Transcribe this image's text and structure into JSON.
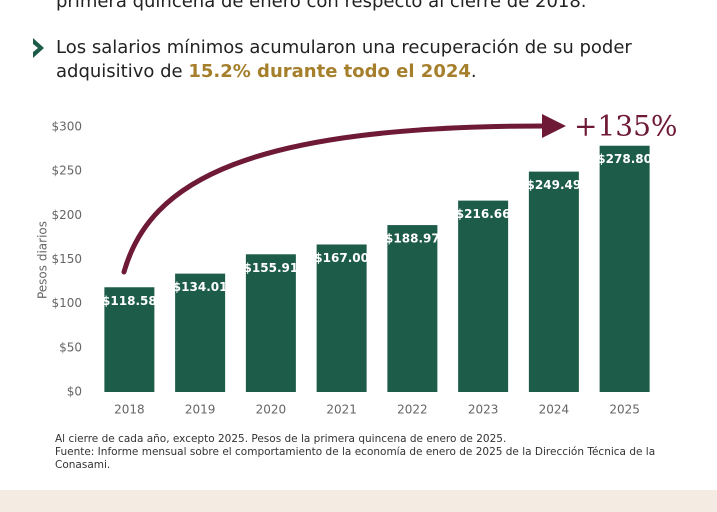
{
  "header_text": "primera quincena de enero con respecto al cierre de 2018.",
  "bullet": {
    "line1": "Los salarios mínimos acumularon una recuperación de su poder",
    "before": "adquisitivo de ",
    "highlight": "15.2% durante todo el 2024",
    "after": "."
  },
  "chart_data": {
    "type": "bar",
    "categories": [
      "2018",
      "2019",
      "2020",
      "2021",
      "2022",
      "2023",
      "2024",
      "2025"
    ],
    "values": [
      118.58,
      134.01,
      155.91,
      167.0,
      188.97,
      216.66,
      249.49,
      278.8
    ],
    "value_labels": [
      "$118.58",
      "$134.01",
      "$155.91",
      "$167.00",
      "$188.97",
      "$216.66",
      "$249.49",
      "$278.80"
    ],
    "color": "#1e5c4a",
    "y_label": "Pesos diarios",
    "ylim": [
      0,
      300
    ],
    "yticks": [
      {
        "value": 0,
        "label": "$0"
      },
      {
        "value": 50,
        "label": "$50"
      },
      {
        "value": 100,
        "label": "$100"
      },
      {
        "value": 150,
        "label": "$150"
      },
      {
        "value": 200,
        "label": "$200"
      },
      {
        "value": 250,
        "label": "$250"
      },
      {
        "value": 300,
        "label": "$300"
      }
    ],
    "annotation": "+135%",
    "grid": false
  },
  "footnotes": [
    "Al cierre de cada año, excepto 2025. Pesos de la primera quincena de enero de 2025.",
    "Fuente: Informe mensual sobre el comportamiento de la economía de enero de 2025 de la Dirección Técnica de la",
    "Conasami."
  ]
}
